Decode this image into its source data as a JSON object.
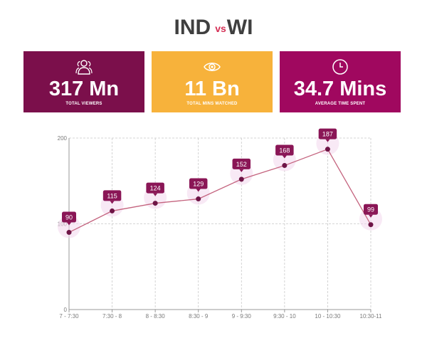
{
  "header": {
    "team1": "IND",
    "vs": "vs",
    "team2": "WI"
  },
  "cards": [
    {
      "value": "317 Mn",
      "label": "TOTAL VIEWERS",
      "icon": "users-icon",
      "color": "#7b0f4b"
    },
    {
      "value": "11 Bn",
      "label": "TOTAL MINS WATCHED",
      "icon": "eye-icon",
      "color": "#f7b23b"
    },
    {
      "value": "34.7 Mins",
      "label": "AVERAGE TIME SPENT",
      "icon": "clock-icon",
      "color": "#a0085f"
    }
  ],
  "chart_data": {
    "type": "line",
    "categories": [
      "7 - 7:30",
      "7:30 - 8",
      "8 - 8:30",
      "8:30 - 9",
      "9 - 9:30",
      "9:30 - 10",
      "10 - 10:30",
      "10:30-11"
    ],
    "series": [
      {
        "values": [
          90,
          115,
          124,
          129,
          152,
          168,
          187,
          99
        ]
      }
    ],
    "ylim": [
      0,
      200
    ],
    "yticks": [
      0,
      100,
      200
    ],
    "grid": true,
    "colors": {
      "line": "#c4637e",
      "marker": "#6e1446",
      "label_bg": "#8a1656"
    }
  }
}
